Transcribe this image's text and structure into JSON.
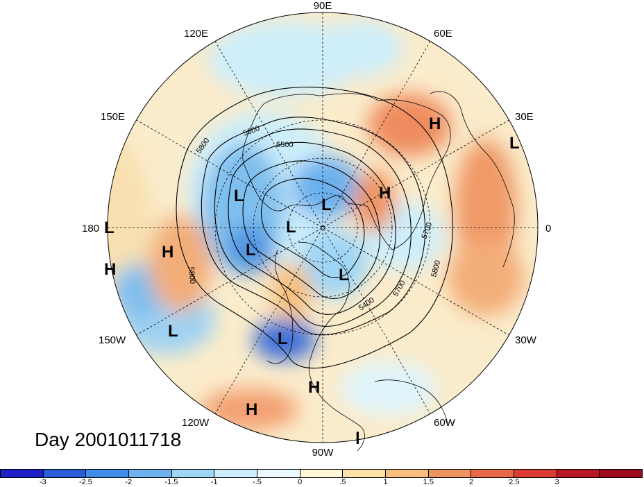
{
  "title": "Day 2001011718",
  "projection": "polar-stereographic-north",
  "longitude_labels": [
    "90E",
    "60E",
    "30E",
    "0",
    "30W",
    "60W",
    "90W",
    "120W",
    "150W",
    "180",
    "150E",
    "120E"
  ],
  "contour_labels": [
    "5500",
    "5600",
    "5800",
    "5800",
    "5700",
    "5800",
    "5700",
    "5400"
  ],
  "pressure_centers": [
    {
      "type": "H"
    },
    {
      "type": "H"
    },
    {
      "type": "L"
    },
    {
      "type": "L"
    },
    {
      "type": "L"
    },
    {
      "type": "L"
    },
    {
      "type": "L"
    },
    {
      "type": "L"
    },
    {
      "type": "L"
    },
    {
      "type": "H"
    },
    {
      "type": "H"
    },
    {
      "type": "L"
    },
    {
      "type": "H"
    },
    {
      "type": "H"
    },
    {
      "type": "L"
    },
    {
      "type": "l"
    }
  ],
  "colorbar": {
    "colors": [
      "#1f1fc8",
      "#2b5fd8",
      "#3f8de6",
      "#6cb0ee",
      "#9fd6f6",
      "#cdeefb",
      "#eafaff",
      "#fff8d6",
      "#fbe3a8",
      "#f6bf7e",
      "#ef9460",
      "#e86848",
      "#dc3b33",
      "#b81826",
      "#9c0c1e"
    ],
    "tick_labels": [
      "-3",
      "-2.5",
      "-2",
      "-1.5",
      "-1",
      "-.5",
      "0",
      ".5",
      "1",
      "1.5",
      "2",
      "2.5",
      "3"
    ]
  }
}
